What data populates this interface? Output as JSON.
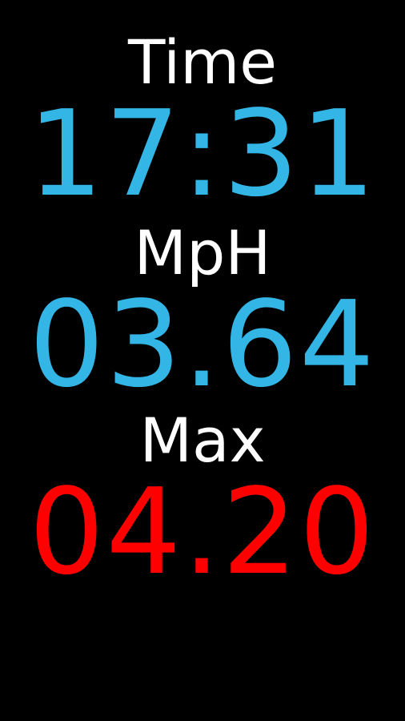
{
  "time": {
    "label": "Time",
    "value": "17:31"
  },
  "speed": {
    "label": "MpH",
    "value": "03.64"
  },
  "max": {
    "label": "Max",
    "value": "04.20"
  },
  "colors": {
    "background": "#000000",
    "label": "#ffffff",
    "time_value": "#33b5e5",
    "speed_value": "#33b5e5",
    "max_value": "#ff0000"
  }
}
